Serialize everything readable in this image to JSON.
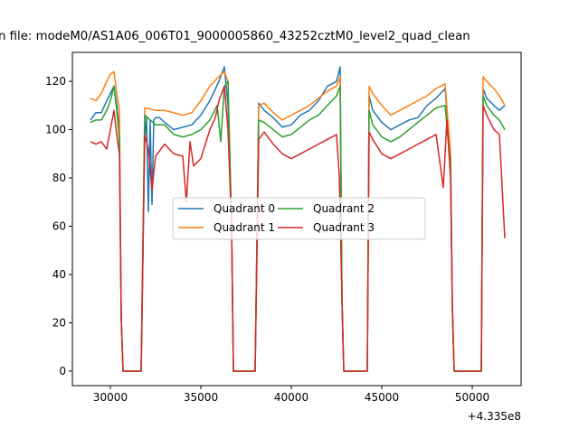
{
  "chart_data": {
    "type": "line",
    "title": "n file: modeM0/AS1A06_006T01_9000005860_43252cztM0_level2_quad_clean",
    "xlabel": "",
    "ylabel": "",
    "x_offset_label": "+4.335e8",
    "x_ticks": [
      30000,
      35000,
      40000,
      45000,
      50000
    ],
    "x_tick_labels": [
      "30000",
      "35000",
      "40000",
      "45000",
      "50000"
    ],
    "y_ticks": [
      0,
      20,
      40,
      60,
      80,
      100,
      120
    ],
    "y_tick_labels": [
      "0",
      "20",
      "40",
      "60",
      "80",
      "100",
      "120"
    ],
    "xlim": [
      27900,
      52700
    ],
    "ylim": [
      -6,
      132
    ],
    "grid": false,
    "legend": "center, 2 columns",
    "x_units": "seconds minus 433500000",
    "colors": {
      "q0": "#1f77b4",
      "q1": "#ff7f0e",
      "q2": "#2ca02c",
      "q3": "#d62728"
    },
    "series": [
      {
        "name": "Quadrant 0",
        "color": "#1f77b4",
        "x": [
          28900,
          29200,
          29500,
          29800,
          30000,
          30200,
          30350,
          30500,
          30600,
          30700,
          31700,
          31900,
          32000,
          32100,
          32200,
          32300,
          32400,
          32500,
          32700,
          33000,
          33500,
          34000,
          34500,
          35000,
          35500,
          36000,
          36300,
          36500,
          36700,
          36800,
          38000,
          38200,
          38500,
          39000,
          39500,
          40000,
          40500,
          41000,
          41500,
          42000,
          42500,
          42700,
          42800,
          42900,
          44200,
          44300,
          44500,
          45000,
          45500,
          46000,
          46500,
          47000,
          47500,
          48000,
          48500,
          48800,
          48900,
          49000,
          50500,
          50600,
          50800,
          51200,
          51500,
          51800
        ],
        "y": [
          104,
          107,
          107,
          112,
          115,
          118,
          110,
          100,
          22,
          0,
          0,
          96,
          105,
          66,
          104,
          69,
          104,
          105,
          105,
          103,
          100,
          101,
          102,
          106,
          112,
          120,
          126,
          110,
          60,
          0,
          0,
          111,
          108,
          105,
          101,
          102,
          106,
          108,
          112,
          118,
          120,
          126,
          30,
          0,
          0,
          114,
          108,
          103,
          100,
          102,
          104,
          105,
          110,
          113,
          117,
          90,
          28,
          0,
          0,
          117,
          113,
          110,
          108,
          110
        ]
      },
      {
        "name": "Quadrant 1",
        "color": "#ff7f0e",
        "x": [
          28900,
          29200,
          29500,
          29800,
          30000,
          30200,
          30350,
          30500,
          30600,
          30700,
          31700,
          31900,
          32500,
          33000,
          33500,
          34000,
          34500,
          35000,
          35500,
          36000,
          36300,
          36500,
          36700,
          36800,
          38000,
          38200,
          38500,
          39000,
          39500,
          40000,
          40500,
          41000,
          41500,
          42000,
          42500,
          42700,
          42800,
          42900,
          44200,
          44300,
          44500,
          45000,
          45500,
          46000,
          46500,
          47000,
          47500,
          48000,
          48500,
          48800,
          48900,
          49000,
          50500,
          50600,
          50800,
          51200,
          51500,
          51800
        ],
        "y": [
          113,
          112,
          115,
          120,
          123,
          124,
          115,
          108,
          22,
          0,
          0,
          109,
          108,
          108,
          107,
          106,
          107,
          112,
          118,
          122,
          124,
          120,
          60,
          0,
          0,
          110,
          111,
          107,
          104,
          106,
          108,
          110,
          113,
          116,
          118,
          122,
          30,
          0,
          0,
          118,
          115,
          110,
          106,
          108,
          110,
          112,
          114,
          117,
          119,
          90,
          28,
          0,
          0,
          122,
          120,
          117,
          114,
          110
        ]
      },
      {
        "name": "Quadrant 2",
        "color": "#2ca02c",
        "x": [
          28900,
          29200,
          29500,
          29800,
          30000,
          30200,
          30350,
          30500,
          30600,
          30700,
          31700,
          31900,
          32500,
          33000,
          33500,
          34000,
          34500,
          35000,
          35500,
          35900,
          36100,
          36300,
          36500,
          36700,
          36800,
          38000,
          38200,
          38500,
          39000,
          39500,
          40000,
          40500,
          41000,
          41500,
          42000,
          42500,
          42700,
          42800,
          42900,
          44200,
          44300,
          44500,
          45000,
          45500,
          46000,
          46500,
          47000,
          47500,
          48000,
          48500,
          48800,
          48900,
          49000,
          50500,
          50600,
          50800,
          51200,
          51500,
          51800
        ],
        "y": [
          103,
          104,
          104,
          108,
          112,
          118,
          108,
          96,
          22,
          0,
          0,
          106,
          102,
          102,
          98,
          97,
          98,
          100,
          104,
          110,
          95,
          118,
          120,
          60,
          0,
          0,
          104,
          103,
          100,
          97,
          98,
          101,
          104,
          106,
          110,
          114,
          118,
          30,
          0,
          0,
          108,
          102,
          97,
          95,
          97,
          100,
          103,
          106,
          109,
          110,
          85,
          26,
          0,
          0,
          114,
          110,
          106,
          104,
          100
        ]
      },
      {
        "name": "Quadrant 3",
        "color": "#d62728",
        "x": [
          28900,
          29200,
          29500,
          29800,
          30000,
          30200,
          30350,
          30500,
          30600,
          30700,
          31700,
          31900,
          32100,
          32300,
          32500,
          33000,
          33500,
          34000,
          34200,
          34400,
          34600,
          35000,
          35500,
          35800,
          36000,
          36300,
          36500,
          36700,
          36800,
          38000,
          38200,
          38500,
          39000,
          39500,
          40000,
          40500,
          41000,
          41500,
          42000,
          42500,
          42650,
          42800,
          42900,
          44200,
          44300,
          44500,
          45000,
          45500,
          46000,
          46500,
          47000,
          47500,
          48000,
          48400,
          48600,
          48800,
          48900,
          49000,
          50500,
          50600,
          50800,
          51200,
          51500,
          51800
        ],
        "y": [
          95,
          94,
          95,
          92,
          100,
          108,
          98,
          90,
          22,
          0,
          0,
          98,
          92,
          75,
          89,
          94,
          90,
          89,
          70,
          95,
          85,
          88,
          100,
          105,
          112,
          118,
          100,
          60,
          0,
          0,
          96,
          99,
          94,
          90,
          88,
          90,
          92,
          94,
          96,
          98,
          81,
          30,
          0,
          0,
          99,
          96,
          90,
          88,
          90,
          92,
          94,
          96,
          98,
          76,
          104,
          80,
          26,
          0,
          0,
          110,
          106,
          100,
          98,
          55
        ]
      }
    ]
  }
}
